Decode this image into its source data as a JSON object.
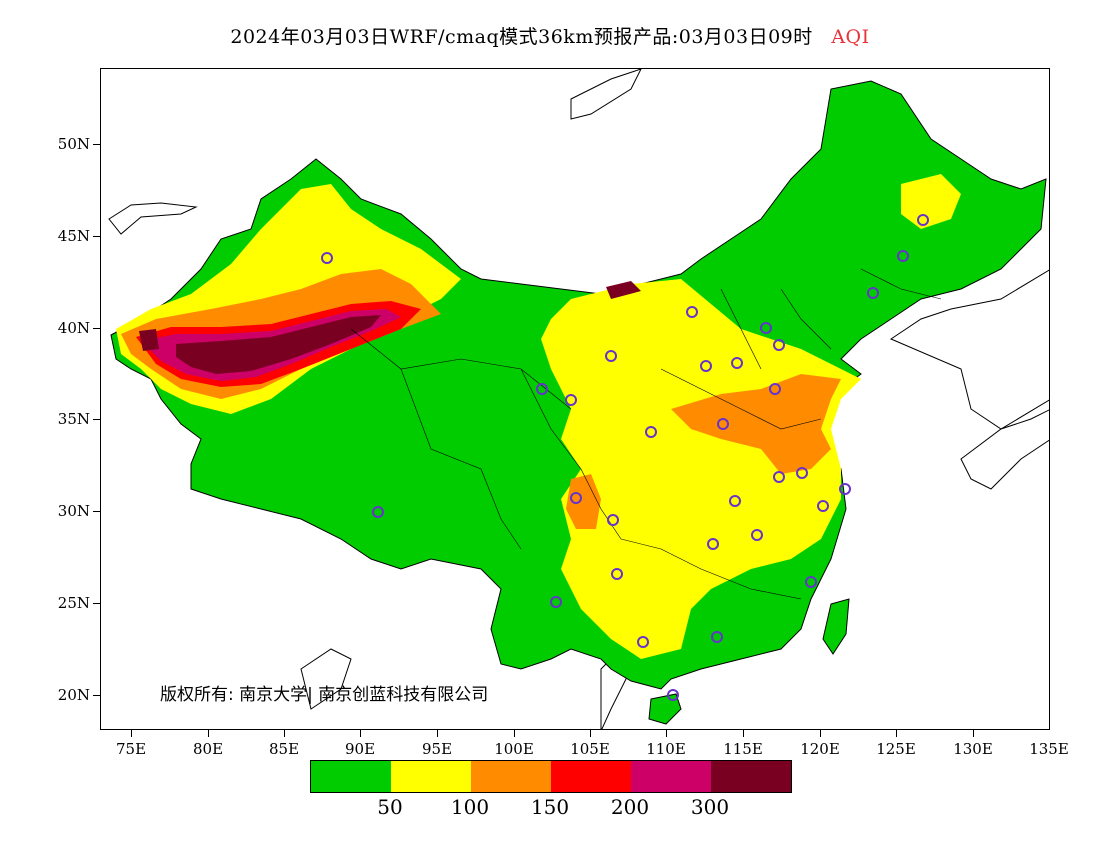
{
  "title": {
    "main": "2024年03月03日WRF/cmaq模式36km预报产品:03月03日09时",
    "product": "AQI"
  },
  "axes": {
    "lat": [
      "50N",
      "45N",
      "40N",
      "35N",
      "30N",
      "25N",
      "20N"
    ],
    "lon": [
      "75E",
      "80E",
      "85E",
      "90E",
      "95E",
      "100E",
      "105E",
      "110E",
      "115E",
      "120E",
      "125E",
      "130E",
      "135E"
    ]
  },
  "copyright": "版权所有: 南京大学| 南京创蓝科技有限公司",
  "legend": {
    "colors": [
      "#00cc00",
      "#ffff00",
      "#ff8c00",
      "#ff0000",
      "#cc0066",
      "#7a0022"
    ],
    "labels": [
      "50",
      "100",
      "150",
      "200",
      "300"
    ]
  }
}
